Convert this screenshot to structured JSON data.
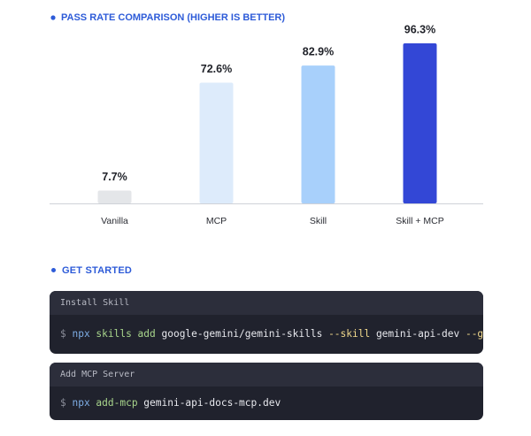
{
  "chart_data": {
    "type": "bar",
    "title": "PASS RATE COMPARISON (HIGHER IS BETTER)",
    "categories": [
      "Vanilla",
      "MCP",
      "Skill",
      "Skill + MCP"
    ],
    "values": [
      7.7,
      72.6,
      82.9,
      96.3
    ],
    "value_labels": [
      "7.7%",
      "72.6%",
      "82.9%",
      "96.3%"
    ],
    "colors": [
      "#e4e6e9",
      "#ddebfb",
      "#a8d0fb",
      "#3347d6"
    ],
    "ylim": [
      0,
      100
    ]
  },
  "get_started": {
    "title": "GET STARTED",
    "blocks": [
      {
        "label": "Install Skill",
        "command": [
          {
            "text": "$",
            "color": "#8a8d99"
          },
          {
            "text": "npx",
            "color": "#7eaee6"
          },
          {
            "text": "skills add",
            "color": "#a9d68c"
          },
          {
            "text": "google-gemini/gemini-skills",
            "color": "#e8e9ee"
          },
          {
            "text": "--skill",
            "color": "#f0d88c"
          },
          {
            "text": "gemini-api-dev",
            "color": "#e8e9ee"
          },
          {
            "text": "--global",
            "color": "#f0d88c"
          }
        ]
      },
      {
        "label": "Add MCP Server",
        "command": [
          {
            "text": "$",
            "color": "#8a8d99"
          },
          {
            "text": "npx",
            "color": "#7eaee6"
          },
          {
            "text": "add-mcp",
            "color": "#a9d68c"
          },
          {
            "text": "gemini-api-docs-mcp.dev",
            "color": "#e8e9ee"
          }
        ]
      }
    ]
  }
}
